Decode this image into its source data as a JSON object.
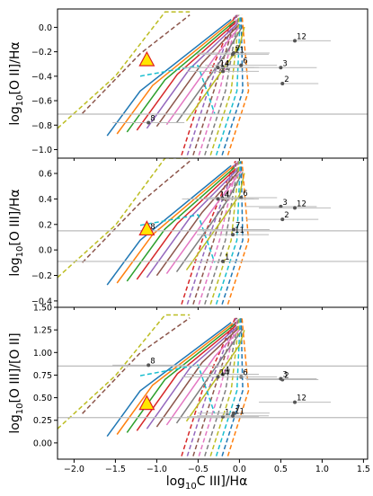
{
  "figure": {
    "xlabel": "log$_{10}$C III]/H$\\alpha$",
    "xlabel_text": "log10C III]/Hα",
    "xlim": [
      -2.2,
      1.55
    ],
    "xticks": [
      -2.0,
      -1.5,
      -1.0,
      -0.5,
      0.0,
      0.5,
      1.0,
      1.5
    ],
    "xtick_labels": [
      "−2.0",
      "−1.5",
      "−1.0",
      "−0.5",
      "0.0",
      "0.5",
      "1.0",
      "1.5"
    ]
  },
  "chart_data": [
    {
      "type": "scatter",
      "panel": "top",
      "ylabel": "log10[O II]/Hα",
      "ylim": [
        -1.07,
        0.15
      ],
      "yticks": [
        0.0,
        -0.2,
        -0.4,
        -0.6,
        -0.8,
        -1.0
      ],
      "ytick_labels": [
        "0.0",
        "−0.2",
        "−0.4",
        "−0.6",
        "−0.8",
        "−1.0"
      ],
      "reference_line_y": -0.71,
      "highlight_triangle": {
        "x": -1.12,
        "y": -0.27
      },
      "points": [
        {
          "label": "1",
          "x": -0.2,
          "y": -0.36
        },
        {
          "label": "2",
          "x": 0.52,
          "y": -0.46
        },
        {
          "label": "3",
          "x": 0.5,
          "y": -0.33
        },
        {
          "label": "4",
          "x": -0.2,
          "y": -0.33
        },
        {
          "label": "6",
          "x": 0.02,
          "y": -0.31
        },
        {
          "label": "7",
          "x": -0.07,
          "y": -0.21
        },
        {
          "label": "8",
          "x": -1.1,
          "y": -0.78
        },
        {
          "label": "11",
          "x": -0.08,
          "y": -0.22
        },
        {
          "label": "12",
          "x": 0.67,
          "y": -0.11
        },
        {
          "label": "14",
          "x": -0.26,
          "y": -0.33
        }
      ]
    },
    {
      "type": "scatter",
      "panel": "middle",
      "ylabel": "log10[O III]/Hα",
      "ylim": [
        -0.45,
        0.72
      ],
      "yticks": [
        0.6,
        0.4,
        0.2,
        0.0,
        -0.2,
        -0.4
      ],
      "ytick_labels": [
        "0.6",
        "0.4",
        "0.2",
        "0.0",
        "−0.2",
        "−0.4"
      ],
      "reference_line_y": 0.15,
      "reference_line_y2": -0.09,
      "highlight_triangle": {
        "x": -1.12,
        "y": 0.16
      },
      "points": [
        {
          "label": "1",
          "x": -0.2,
          "y": -0.09
        },
        {
          "label": "2",
          "x": 0.52,
          "y": 0.24
        },
        {
          "label": "3",
          "x": 0.5,
          "y": 0.34
        },
        {
          "label": "4",
          "x": -0.2,
          "y": 0.4
        },
        {
          "label": "6",
          "x": 0.02,
          "y": 0.41
        },
        {
          "label": "7",
          "x": -0.07,
          "y": 0.16
        },
        {
          "label": "8",
          "x": -1.1,
          "y": 0.15
        },
        {
          "label": "11",
          "x": -0.08,
          "y": 0.12
        },
        {
          "label": "12",
          "x": 0.67,
          "y": 0.33
        },
        {
          "label": "14",
          "x": -0.26,
          "y": 0.4
        }
      ]
    },
    {
      "type": "scatter",
      "panel": "bottom",
      "ylabel": "log10[O III]/[O II]",
      "ylim": [
        -0.18,
        1.5
      ],
      "yticks": [
        1.5,
        1.25,
        1.0,
        0.75,
        0.5,
        0.25,
        0.0
      ],
      "ytick_labels": [
        "1.50",
        "1.25",
        "1.00",
        "0.75",
        "0.50",
        "0.25",
        "0.00"
      ],
      "reference_line_y": 0.85,
      "reference_line_y2": 0.28,
      "highlight_triangle": {
        "x": -1.12,
        "y": 0.43
      },
      "points": [
        {
          "label": "1",
          "x": -0.2,
          "y": 0.29
        },
        {
          "label": "2",
          "x": 0.52,
          "y": 0.7
        },
        {
          "label": "3",
          "x": 0.5,
          "y": 0.71
        },
        {
          "label": "4",
          "x": -0.2,
          "y": 0.76
        },
        {
          "label": "6",
          "x": 0.02,
          "y": 0.73
        },
        {
          "label": "7",
          "x": -0.07,
          "y": 0.33
        },
        {
          "label": "8",
          "x": -1.1,
          "y": 0.86
        },
        {
          "label": "11",
          "x": -0.08,
          "y": 0.3
        },
        {
          "label": "12",
          "x": 0.67,
          "y": 0.45
        },
        {
          "label": "14",
          "x": -0.26,
          "y": 0.73
        }
      ]
    }
  ],
  "colors": {
    "reference_line": "#bbbbbb",
    "error_bar": "#bbbbbb",
    "triangle_fill": "#ffe600",
    "triangle_edge": "#e02020",
    "model_grid": [
      "#1f77b4",
      "#ff7f0e",
      "#2ca02c",
      "#d62728",
      "#9467bd",
      "#8c564b",
      "#e377c2",
      "#7f7f7f",
      "#bcbd22",
      "#17becf"
    ]
  }
}
